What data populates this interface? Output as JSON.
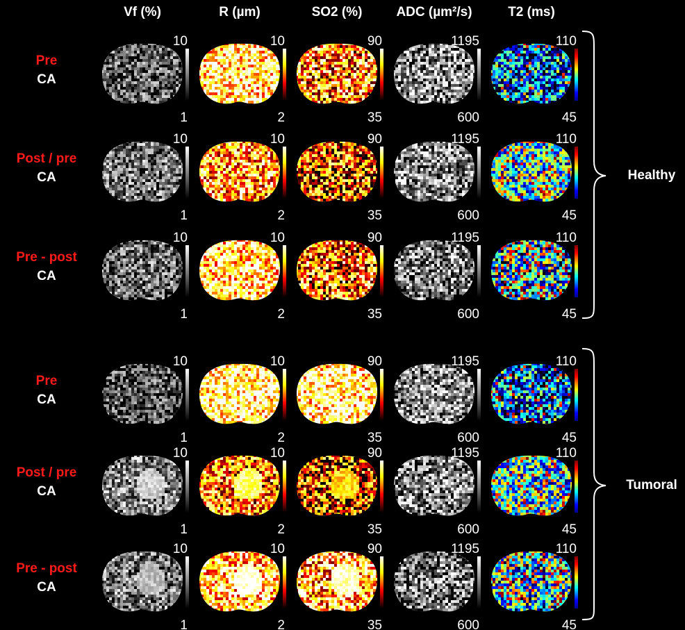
{
  "columns": [
    {
      "title": "Vf (%)",
      "max": 10,
      "min": 1
    },
    {
      "title": "R (µm)",
      "max": 10,
      "min": 2
    },
    {
      "title": "SO2 (%)",
      "max": 90,
      "min": 35
    },
    {
      "title": "ADC (µm²/s)",
      "max": 1195,
      "min": 600
    },
    {
      "title": "T2 (ms)",
      "max": 110,
      "min": 45
    }
  ],
  "rows": [
    {
      "line1": "Pre",
      "line2": "CA"
    },
    {
      "line1": "Post / pre",
      "line2": "CA"
    },
    {
      "line1": "Pre - post",
      "line2": "CA"
    },
    {
      "line1": "Pre",
      "line2": "CA"
    },
    {
      "line1": "Post / pre",
      "line2": "CA"
    },
    {
      "line1": "Pre - post",
      "line2": "CA"
    }
  ],
  "groups": [
    {
      "label": "Healthy"
    },
    {
      "label": "Tumoral"
    }
  ]
}
